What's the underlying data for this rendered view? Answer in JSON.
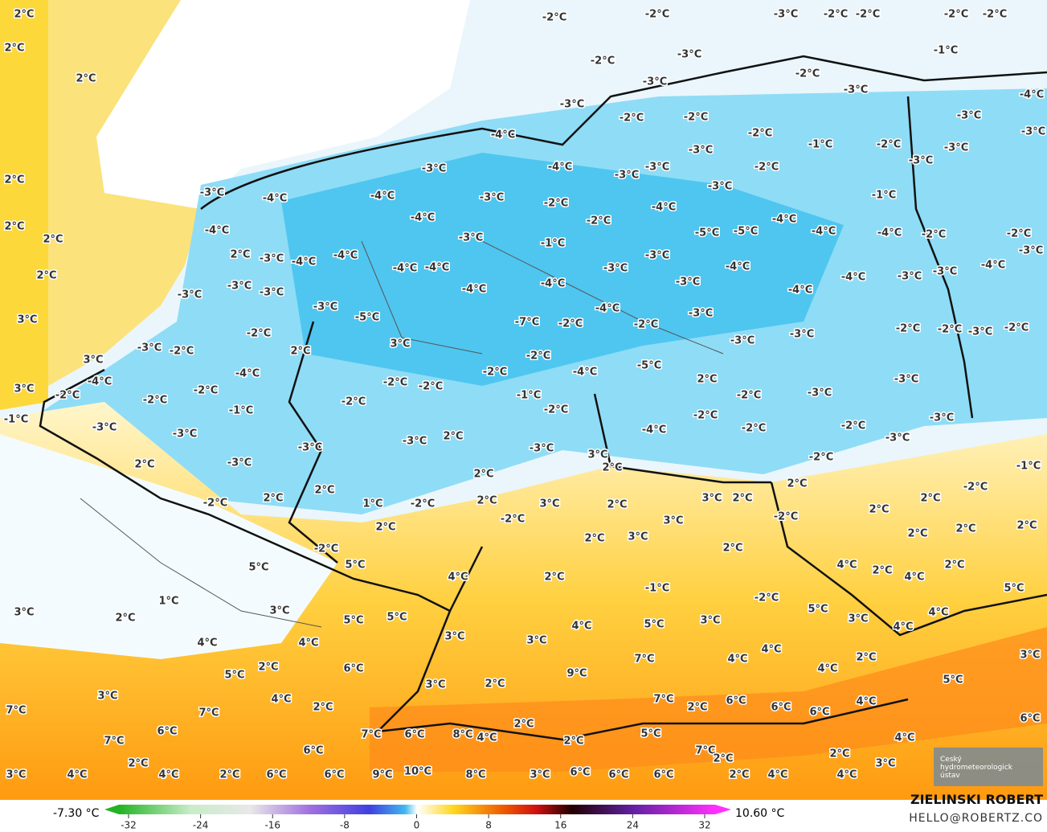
{
  "map": {
    "labels": [
      "2°C",
      "2°C",
      "2°C",
      "2°C",
      "2°C",
      "2°C",
      "2°C",
      "3°C",
      "3°C",
      "3°C",
      "-2°C",
      "-2°C",
      "-3°C",
      "-2°C",
      "-2°C",
      "-2°C",
      "-2°C",
      "-1°C",
      "-4°C",
      "-3°C",
      "-3°C",
      "-2°C",
      "-3°C",
      "-2°C",
      "-3°C",
      "-3°C",
      "-3°C",
      "-2°C",
      "-2°C",
      "-2°C",
      "-1°C",
      "-2°C",
      "-3°C",
      "-4°C",
      "-3°C",
      "-4°C",
      "-3°C",
      "-3°C",
      "-3°C",
      "-2°C",
      "-3°C",
      "-3°C",
      "-1°C",
      "-3°C",
      "-4°C",
      "-4°C",
      "-3°C",
      "-2°C",
      "-4°C",
      "-4°C",
      "-2°C",
      "-4°C",
      "-4°C",
      "-4°C",
      "-5°C",
      "-5°C",
      "-4°C",
      "-2°C",
      "-2°C",
      "-3°C",
      "-1°C",
      "2°C",
      "-3°C",
      "-4°C",
      "-4°C",
      "-3°C",
      "-4°C",
      "-4°C",
      "-3°C",
      "-3°C",
      "-4°C",
      "-4°C",
      "-3°C",
      "-4°C",
      "-3°C",
      "-3°C",
      "-3°C",
      "-4°C",
      "-4°C",
      "-3°C",
      "-4°C",
      "-3°C",
      "-3°C",
      "-4°C",
      "-3°C",
      "-5°C",
      "-7°C",
      "-2°C",
      "-2°C",
      "-2°C",
      "-2°C",
      "-3°C",
      "-2°C",
      "-2°C",
      "-3°C",
      "-3°C",
      "3°C",
      "2°C",
      "-3°C",
      "-2°C",
      "-2°C",
      "-5°C",
      "-4°C",
      "-2°C",
      "-4°C",
      "-4°C",
      "-2°C",
      "-2°C",
      "2°C",
      "-3°C",
      "-2°C",
      "-2°C",
      "-2°C",
      "-2°C",
      "-1°C",
      "-3°C",
      "-2°C",
      "-1°C",
      "-2°C",
      "-2°C",
      "-1°C",
      "-3°C",
      "-2°C",
      "-2°C",
      "-3°C",
      "-3°C",
      "-3°C",
      "2°C",
      "-4°C",
      "-3°C",
      "-3°C",
      "-3°C",
      "3°C",
      "-2°C",
      "-1°C",
      "2°C",
      "-3°C",
      "2°C",
      "2°C",
      "2°C",
      "-2°C",
      "2°C",
      "2°C",
      "3°C",
      "2°C",
      "2°C",
      "-2°C",
      "1°C",
      "-2°C",
      "2°C",
      "3°C",
      "2°C",
      "-2°C",
      "2°C",
      "-2°C",
      "3°C",
      "2°C",
      "2°C",
      "2°C",
      "2°C",
      "3°C",
      "2°C",
      "2°C",
      "-2°C",
      "5°C",
      "5°C",
      "4°C",
      "2°C",
      "2°C",
      "4°C",
      "2°C",
      "4°C",
      "-1°C",
      "5°C",
      "1°C",
      "-2°C",
      "3°C",
      "2°C",
      "5°C",
      "5°C",
      "5°C",
      "3°C",
      "4°C",
      "3°C",
      "4°C",
      "5°C",
      "3°C",
      "4°C",
      "3°C",
      "3°C",
      "4°C",
      "4°C",
      "4°C",
      "4°C",
      "7°C",
      "2°C",
      "3°C",
      "2°C",
      "6°C",
      "5°C",
      "9°C",
      "4°C",
      "5°C",
      "2°C",
      "3°C",
      "3°C",
      "4°C",
      "7°C",
      "6°C",
      "2°C",
      "4°C",
      "7°C",
      "2°C",
      "6°C",
      "7°C",
      "6°C",
      "2°C",
      "6°C",
      "6°C",
      "7°C",
      "6°C",
      "8°C",
      "5°C",
      "2°C",
      "4°C",
      "7°C",
      "6°C",
      "4°C",
      "2°C",
      "7°C",
      "2°C",
      "2°C",
      "3°C",
      "3°C",
      "4°C",
      "4°C",
      "2°C",
      "6°C",
      "6°C",
      "9°C",
      "10°C",
      "8°C",
      "3°C",
      "6°C",
      "6°C",
      "6°C",
      "2°C",
      "4°C",
      "4°C"
    ]
  },
  "colorbar": {
    "min_label": "-7.30 °C",
    "max_label": "10.60 °C",
    "ticks": [
      -32,
      -24,
      -16,
      -8,
      0,
      8,
      16,
      24,
      32
    ]
  },
  "credits": {
    "author": "ZIELINSKI ROBERT",
    "contact": "HELLO@ROBERTZ.CO",
    "logo": "Český hydrometeorologický ústav"
  }
}
